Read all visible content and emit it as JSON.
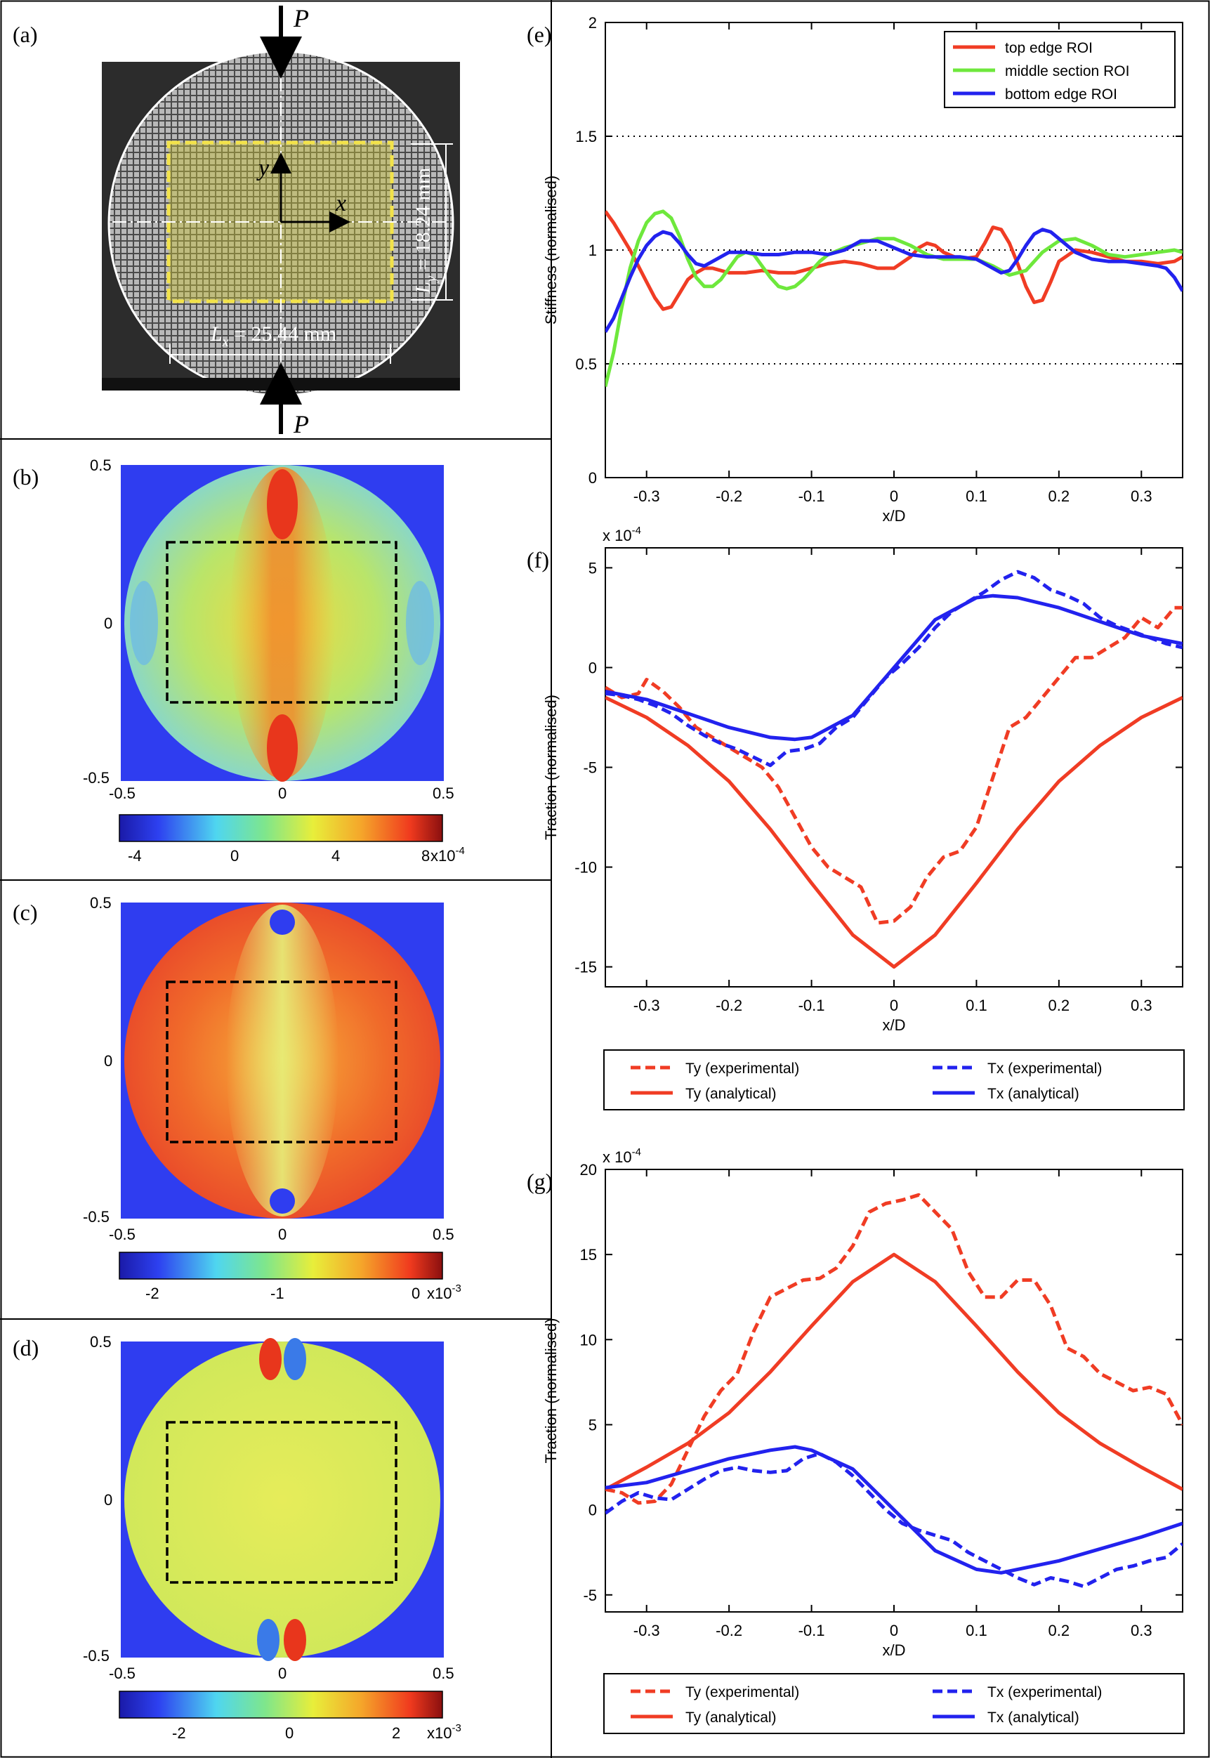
{
  "panels": {
    "a": {
      "label": "(a)",
      "load_top": "P",
      "load_bottom": "P",
      "axis_x": "x",
      "axis_y": "y",
      "lx_text": "L",
      "lx_sub": "x",
      "lx_value": " = 25.44 mm",
      "ly_text": "L",
      "ly_sub": "y",
      "ly_value": " = 18.24 mm",
      "roi_color": "#f2e24a"
    },
    "b": {
      "label": "(b)",
      "x_ticks": [
        "-0.5",
        "0",
        "0.5"
      ],
      "y_ticks": [
        "0.5",
        "0",
        "-0.5"
      ],
      "colorbar_ticks": [
        "-4",
        "0",
        "4",
        "8"
      ],
      "colorbar_exp": "x10",
      "colorbar_exp_power": "-4"
    },
    "c": {
      "label": "(c)",
      "x_ticks": [
        "-0.5",
        "0",
        "0.5"
      ],
      "y_ticks": [
        "0.5",
        "0",
        "-0.5"
      ],
      "colorbar_ticks": [
        "-2",
        "-1",
        "0"
      ],
      "colorbar_exp": "x10",
      "colorbar_exp_power": "-3"
    },
    "d": {
      "label": "(d)",
      "x_ticks": [
        "-0.5",
        "0",
        "0.5"
      ],
      "y_ticks": [
        "0.5",
        "0",
        "-0.5"
      ],
      "colorbar_ticks": [
        "-2",
        "0",
        "2"
      ],
      "colorbar_exp": "x10",
      "colorbar_exp_power": "-3"
    }
  },
  "colors": {
    "red": "#f03c24",
    "green": "#6ee83c",
    "blue": "#2222ee",
    "field_blue": "#2f3df0"
  },
  "chart_data": [
    {
      "panel": "(e)",
      "type": "line",
      "xlabel": "x/D",
      "ylabel": "Stiffness (normalised)",
      "xlim": [
        -0.35,
        0.35
      ],
      "ylim": [
        0,
        2
      ],
      "x_ticks": [
        "-0.3",
        "-0.2",
        "-0.1",
        "0",
        "0.1",
        "0.2",
        "0.3"
      ],
      "y_ticks": [
        "0",
        "0.5",
        "1",
        "1.5",
        "2"
      ],
      "reference_lines": [
        0.5,
        1,
        1.5
      ],
      "legend_position": "top-right",
      "series": [
        {
          "name": "top edge ROI",
          "color": "red",
          "x": [
            -0.35,
            -0.34,
            -0.33,
            -0.32,
            -0.31,
            -0.3,
            -0.29,
            -0.28,
            -0.27,
            -0.26,
            -0.25,
            -0.24,
            -0.23,
            -0.22,
            -0.2,
            -0.18,
            -0.16,
            -0.14,
            -0.12,
            -0.1,
            -0.08,
            -0.06,
            -0.04,
            -0.02,
            0.0,
            0.02,
            0.03,
            0.04,
            0.05,
            0.06,
            0.08,
            0.1,
            0.11,
            0.12,
            0.13,
            0.14,
            0.15,
            0.16,
            0.17,
            0.18,
            0.19,
            0.2,
            0.22,
            0.24,
            0.26,
            0.28,
            0.3,
            0.32,
            0.34,
            0.35
          ],
          "y": [
            1.17,
            1.12,
            1.06,
            1.0,
            0.93,
            0.86,
            0.79,
            0.74,
            0.75,
            0.81,
            0.87,
            0.9,
            0.92,
            0.92,
            0.9,
            0.9,
            0.91,
            0.9,
            0.9,
            0.92,
            0.94,
            0.95,
            0.94,
            0.92,
            0.92,
            0.97,
            1.01,
            1.03,
            1.02,
            0.99,
            0.96,
            0.97,
            1.03,
            1.1,
            1.09,
            1.03,
            0.94,
            0.84,
            0.77,
            0.78,
            0.86,
            0.95,
            1.0,
            0.99,
            0.97,
            0.95,
            0.95,
            0.94,
            0.95,
            0.97
          ]
        },
        {
          "name": "middle section ROI",
          "color": "green",
          "x": [
            -0.35,
            -0.34,
            -0.33,
            -0.32,
            -0.31,
            -0.3,
            -0.29,
            -0.28,
            -0.27,
            -0.26,
            -0.25,
            -0.24,
            -0.23,
            -0.22,
            -0.21,
            -0.2,
            -0.19,
            -0.18,
            -0.17,
            -0.16,
            -0.15,
            -0.14,
            -0.13,
            -0.12,
            -0.11,
            -0.1,
            -0.09,
            -0.08,
            -0.06,
            -0.04,
            -0.02,
            0.0,
            0.02,
            0.04,
            0.06,
            0.08,
            0.1,
            0.12,
            0.14,
            0.16,
            0.18,
            0.2,
            0.22,
            0.24,
            0.26,
            0.28,
            0.3,
            0.32,
            0.34,
            0.35
          ],
          "y": [
            0.4,
            0.55,
            0.75,
            0.92,
            1.04,
            1.12,
            1.16,
            1.17,
            1.14,
            1.06,
            0.96,
            0.88,
            0.84,
            0.84,
            0.87,
            0.92,
            0.97,
            0.99,
            0.98,
            0.93,
            0.88,
            0.84,
            0.83,
            0.84,
            0.87,
            0.91,
            0.95,
            0.98,
            1.01,
            1.03,
            1.05,
            1.05,
            1.02,
            0.98,
            0.96,
            0.96,
            0.96,
            0.93,
            0.89,
            0.91,
            0.99,
            1.04,
            1.05,
            1.02,
            0.98,
            0.97,
            0.98,
            0.99,
            1.0,
            0.99
          ]
        },
        {
          "name": "bottom edge ROI",
          "color": "blue",
          "x": [
            -0.35,
            -0.34,
            -0.33,
            -0.32,
            -0.31,
            -0.3,
            -0.29,
            -0.28,
            -0.27,
            -0.26,
            -0.25,
            -0.24,
            -0.23,
            -0.22,
            -0.21,
            -0.2,
            -0.18,
            -0.16,
            -0.14,
            -0.12,
            -0.1,
            -0.08,
            -0.06,
            -0.04,
            -0.02,
            0.0,
            0.02,
            0.04,
            0.06,
            0.08,
            0.1,
            0.12,
            0.13,
            0.14,
            0.15,
            0.16,
            0.17,
            0.18,
            0.19,
            0.2,
            0.22,
            0.24,
            0.26,
            0.28,
            0.3,
            0.32,
            0.33,
            0.34,
            0.35
          ],
          "y": [
            0.64,
            0.7,
            0.79,
            0.88,
            0.96,
            1.02,
            1.06,
            1.08,
            1.07,
            1.03,
            0.98,
            0.94,
            0.93,
            0.95,
            0.97,
            0.99,
            0.99,
            0.98,
            0.98,
            0.99,
            0.99,
            0.98,
            1.0,
            1.04,
            1.04,
            1.01,
            0.98,
            0.97,
            0.97,
            0.97,
            0.96,
            0.92,
            0.9,
            0.91,
            0.96,
            1.02,
            1.07,
            1.09,
            1.08,
            1.05,
            0.99,
            0.96,
            0.95,
            0.95,
            0.94,
            0.93,
            0.92,
            0.88,
            0.82
          ]
        }
      ]
    },
    {
      "panel": "(f)",
      "type": "line",
      "xlabel": "x/D",
      "ylabel": "Traction (normalised)",
      "y_multiplier": "x 10",
      "y_multiplier_power": "-4",
      "xlim": [
        -0.35,
        0.35
      ],
      "ylim": [
        -16,
        6
      ],
      "x_ticks": [
        "-0.3",
        "-0.2",
        "-0.1",
        "0",
        "0.1",
        "0.2",
        "0.3"
      ],
      "y_ticks": [
        "-15",
        "-10",
        "-5",
        "0",
        "5"
      ],
      "legend_position": "below",
      "series": [
        {
          "name": "Ty (experimental)",
          "color": "red",
          "dash": true,
          "x": [
            -0.35,
            -0.33,
            -0.31,
            -0.3,
            -0.28,
            -0.26,
            -0.24,
            -0.22,
            -0.2,
            -0.18,
            -0.16,
            -0.14,
            -0.12,
            -0.1,
            -0.08,
            -0.06,
            -0.04,
            -0.02,
            0.0,
            0.02,
            0.04,
            0.06,
            0.08,
            0.1,
            0.12,
            0.14,
            0.16,
            0.18,
            0.2,
            0.22,
            0.24,
            0.26,
            0.28,
            0.3,
            0.32,
            0.34,
            0.35
          ],
          "y": [
            -1.0,
            -1.5,
            -1.3,
            -0.6,
            -1.2,
            -2.0,
            -3.0,
            -3.5,
            -4.0,
            -4.5,
            -5.0,
            -6.0,
            -7.5,
            -9.0,
            -10.0,
            -10.5,
            -11.0,
            -12.8,
            -12.7,
            -12.0,
            -10.5,
            -9.5,
            -9.2,
            -8.0,
            -5.5,
            -3.0,
            -2.5,
            -1.5,
            -0.5,
            0.5,
            0.5,
            1.0,
            1.5,
            2.5,
            2.0,
            3.0,
            3.0
          ]
        },
        {
          "name": "Tx (experimental)",
          "color": "blue",
          "dash": true,
          "x": [
            -0.35,
            -0.33,
            -0.31,
            -0.29,
            -0.27,
            -0.25,
            -0.23,
            -0.21,
            -0.19,
            -0.17,
            -0.15,
            -0.13,
            -0.11,
            -0.09,
            -0.07,
            -0.05,
            -0.03,
            -0.01,
            0.01,
            0.03,
            0.05,
            0.07,
            0.09,
            0.11,
            0.13,
            0.15,
            0.17,
            0.19,
            0.21,
            0.23,
            0.25,
            0.27,
            0.29,
            0.31,
            0.33,
            0.35
          ],
          "y": [
            -1.3,
            -1.4,
            -1.6,
            -1.9,
            -2.3,
            -2.9,
            -3.4,
            -3.8,
            -4.1,
            -4.5,
            -4.9,
            -4.2,
            -4.1,
            -3.8,
            -3.0,
            -2.5,
            -1.5,
            -0.5,
            0.2,
            1.0,
            2.0,
            2.8,
            3.3,
            3.8,
            4.4,
            4.8,
            4.5,
            3.9,
            3.6,
            3.2,
            2.5,
            2.1,
            1.8,
            1.5,
            1.2,
            1.0
          ]
        },
        {
          "name": "Ty (analytical)",
          "color": "red",
          "dash": false,
          "x": [
            -0.35,
            -0.3,
            -0.25,
            -0.2,
            -0.15,
            -0.1,
            -0.05,
            0.0,
            0.05,
            0.1,
            0.15,
            0.2,
            0.25,
            0.3,
            0.35
          ],
          "y": [
            -1.5,
            -2.5,
            -3.9,
            -5.7,
            -8.1,
            -10.8,
            -13.4,
            -15.0,
            -13.4,
            -10.8,
            -8.1,
            -5.7,
            -3.9,
            -2.5,
            -1.5
          ]
        },
        {
          "name": "Tx (analytical)",
          "color": "blue",
          "dash": false,
          "x": [
            -0.35,
            -0.3,
            -0.25,
            -0.2,
            -0.15,
            -0.12,
            -0.1,
            -0.05,
            0.0,
            0.05,
            0.1,
            0.12,
            0.15,
            0.2,
            0.25,
            0.3,
            0.35
          ],
          "y": [
            -1.2,
            -1.6,
            -2.3,
            -3.0,
            -3.5,
            -3.6,
            -3.5,
            -2.4,
            0.0,
            2.4,
            3.5,
            3.6,
            3.5,
            3.0,
            2.3,
            1.6,
            1.2
          ]
        }
      ]
    },
    {
      "panel": "(g)",
      "type": "line",
      "xlabel": "x/D",
      "ylabel": "Traction (normalised)",
      "y_multiplier": "x 10",
      "y_multiplier_power": "-4",
      "xlim": [
        -0.35,
        0.35
      ],
      "ylim": [
        -6,
        20
      ],
      "x_ticks": [
        "-0.3",
        "-0.2",
        "-0.1",
        "0",
        "0.1",
        "0.2",
        "0.3"
      ],
      "y_ticks": [
        "-5",
        "0",
        "5",
        "10",
        "15",
        "20"
      ],
      "legend_position": "below",
      "series": [
        {
          "name": "Ty (experimental)",
          "color": "red",
          "dash": true,
          "x": [
            -0.35,
            -0.33,
            -0.31,
            -0.29,
            -0.27,
            -0.25,
            -0.23,
            -0.21,
            -0.19,
            -0.17,
            -0.15,
            -0.13,
            -0.11,
            -0.09,
            -0.07,
            -0.05,
            -0.03,
            -0.01,
            0.01,
            0.03,
            0.05,
            0.07,
            0.09,
            0.11,
            0.13,
            0.15,
            0.17,
            0.19,
            0.21,
            0.23,
            0.25,
            0.27,
            0.29,
            0.31,
            0.33,
            0.35
          ],
          "y": [
            1.2,
            1.0,
            0.4,
            0.5,
            1.5,
            3.5,
            5.5,
            7.0,
            8.0,
            10.5,
            12.5,
            13.0,
            13.5,
            13.6,
            14.2,
            15.5,
            17.5,
            18.0,
            18.2,
            18.5,
            17.5,
            16.5,
            14.0,
            12.5,
            12.5,
            13.5,
            13.5,
            12.0,
            9.5,
            9.0,
            8.0,
            7.5,
            7.0,
            7.2,
            6.8,
            5.0
          ]
        },
        {
          "name": "Tx (experimental)",
          "color": "blue",
          "dash": true,
          "x": [
            -0.35,
            -0.33,
            -0.31,
            -0.29,
            -0.27,
            -0.25,
            -0.23,
            -0.21,
            -0.19,
            -0.17,
            -0.15,
            -0.13,
            -0.11,
            -0.09,
            -0.07,
            -0.05,
            -0.03,
            -0.01,
            0.01,
            0.03,
            0.05,
            0.07,
            0.09,
            0.11,
            0.13,
            0.15,
            0.17,
            0.19,
            0.21,
            0.23,
            0.25,
            0.27,
            0.29,
            0.31,
            0.33,
            0.35
          ],
          "y": [
            -0.2,
            0.5,
            1.0,
            0.7,
            0.6,
            1.2,
            1.8,
            2.3,
            2.5,
            2.3,
            2.2,
            2.3,
            3.0,
            3.3,
            2.8,
            2.0,
            1.0,
            0.0,
            -0.8,
            -1.2,
            -1.5,
            -1.8,
            -2.5,
            -3.0,
            -3.5,
            -4.0,
            -4.4,
            -4.0,
            -4.2,
            -4.5,
            -4.0,
            -3.5,
            -3.3,
            -3.0,
            -2.8,
            -2.0
          ]
        },
        {
          "name": "Ty (analytical)",
          "color": "red",
          "dash": false,
          "x": [
            -0.35,
            -0.3,
            -0.25,
            -0.2,
            -0.15,
            -0.1,
            -0.05,
            0.0,
            0.05,
            0.1,
            0.15,
            0.2,
            0.25,
            0.3,
            0.35
          ],
          "y": [
            1.2,
            2.5,
            3.9,
            5.7,
            8.1,
            10.8,
            13.4,
            15.0,
            13.4,
            10.8,
            8.1,
            5.7,
            3.9,
            2.5,
            1.2
          ]
        },
        {
          "name": "Tx (analytical)",
          "color": "blue",
          "dash": false,
          "x": [
            -0.35,
            -0.3,
            -0.25,
            -0.2,
            -0.15,
            -0.12,
            -0.1,
            -0.05,
            0.0,
            0.05,
            0.1,
            0.13,
            0.15,
            0.2,
            0.25,
            0.3,
            0.35
          ],
          "y": [
            1.3,
            1.6,
            2.3,
            3.0,
            3.5,
            3.7,
            3.5,
            2.4,
            0.0,
            -2.4,
            -3.5,
            -3.7,
            -3.5,
            -3.0,
            -2.3,
            -1.6,
            -0.8
          ]
        }
      ]
    }
  ]
}
